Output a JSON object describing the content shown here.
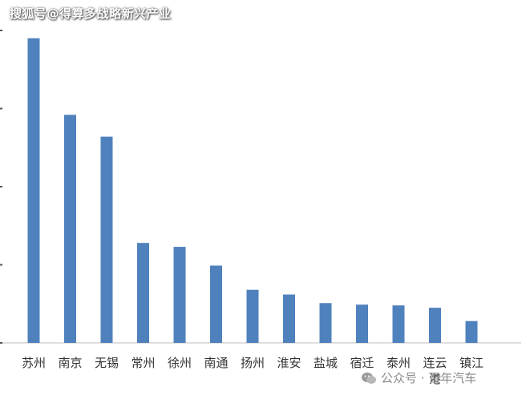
{
  "watermark_top": "搜狐号@得算多战略新兴产业",
  "watermark_bottom": {
    "icon": "wechat-icon",
    "text": "公众号 · 百年汽车"
  },
  "chart_data": {
    "type": "bar",
    "title": "",
    "xlabel": "",
    "ylabel": "",
    "categories": [
      "苏州",
      "南京",
      "无锡",
      "常州",
      "徐州",
      "南通",
      "扬州",
      "淮安",
      "盐城",
      "宿迁",
      "泰州",
      "连云港",
      "镇江"
    ],
    "values": [
      390,
      292,
      264,
      128,
      123,
      99,
      68,
      62,
      51,
      49,
      48,
      45,
      28
    ],
    "ylim": [
      0,
      400
    ],
    "yticks": [
      0,
      100,
      200,
      300,
      400
    ],
    "grid": false,
    "bar_color": "#4f81bd"
  }
}
